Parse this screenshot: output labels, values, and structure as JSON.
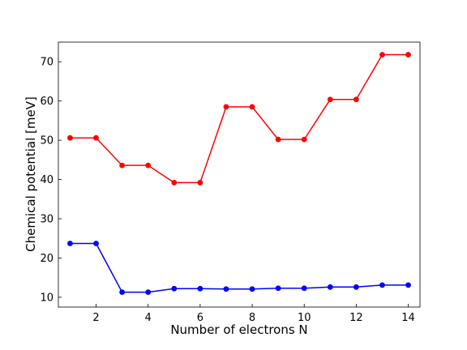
{
  "chart_data": {
    "type": "line",
    "title": "",
    "xlabel": "Number of electrons N",
    "ylabel": "Chemical potential [meV]",
    "xlim": [
      0.55,
      14.45
    ],
    "ylim": [
      7.5,
      75
    ],
    "xticks": [
      2,
      4,
      6,
      8,
      10,
      12,
      14
    ],
    "yticks": [
      10,
      20,
      30,
      40,
      50,
      60,
      70
    ],
    "tick_direction": "in",
    "grid": false,
    "legend": "none",
    "x": [
      1,
      2,
      3,
      4,
      5,
      6,
      7,
      8,
      9,
      10,
      11,
      12,
      13,
      14
    ],
    "series": [
      {
        "color": "#ff0000",
        "values": [
          50.6,
          50.6,
          43.6,
          43.6,
          39.2,
          39.2,
          58.5,
          58.5,
          50.2,
          50.2,
          60.4,
          60.4,
          71.8,
          71.8
        ]
      },
      {
        "color": "#0000ff",
        "values": [
          23.7,
          23.7,
          11.3,
          11.3,
          12.2,
          12.2,
          12.1,
          12.1,
          12.3,
          12.3,
          12.6,
          12.6,
          13.1,
          13.1
        ]
      }
    ]
  }
}
